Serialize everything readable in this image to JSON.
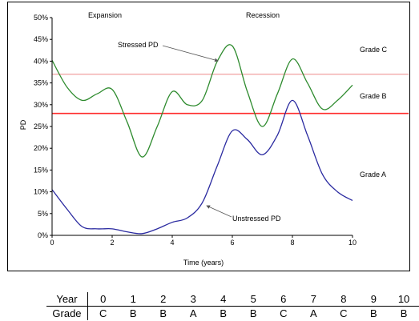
{
  "chart_data": {
    "type": "line",
    "title": "",
    "xlabel": "Time (years)",
    "ylabel": "PD",
    "xlim": [
      0,
      10
    ],
    "ylim": [
      0,
      50
    ],
    "xticks": [
      0,
      2,
      4,
      6,
      8,
      10
    ],
    "yticks": [
      0,
      5,
      10,
      15,
      20,
      25,
      30,
      35,
      40,
      45,
      50
    ],
    "ytick_labels": [
      "0%",
      "5%",
      "10%",
      "15%",
      "20%",
      "25%",
      "30%",
      "35%",
      "40%",
      "45%",
      "50%"
    ],
    "grid": false,
    "series": [
      {
        "color": "#2e8b2e",
        "x": [
          0,
          0.5,
          1,
          1.5,
          2,
          2.5,
          3,
          3.5,
          4,
          4.5,
          5,
          5.5,
          6,
          6.5,
          7,
          7.5,
          8,
          8.5,
          9,
          9.5,
          10
        ],
        "y": [
          40.2,
          34,
          31,
          32.5,
          33.5,
          26,
          18,
          25,
          33,
          30,
          31,
          40,
          43.5,
          33,
          25,
          32.5,
          40.5,
          35,
          29,
          31,
          34.5
        ]
      },
      {
        "color": "#2a2aa0",
        "x": [
          0,
          0.5,
          1,
          1.5,
          2,
          2.5,
          3,
          3.5,
          4,
          4.5,
          5,
          5.5,
          6,
          6.5,
          7,
          7.5,
          8,
          8.5,
          9,
          9.5,
          10
        ],
        "y": [
          10.5,
          6,
          2,
          1.5,
          1.5,
          0.8,
          0.4,
          1.5,
          3,
          4,
          7.5,
          16,
          24,
          22,
          18.5,
          23,
          31,
          23,
          14,
          10,
          8
        ]
      }
    ],
    "thresholds": [
      {
        "y": 37,
        "color": "#f0a0a0"
      },
      {
        "y": 28,
        "color": "#ff2a2a"
      }
    ],
    "annotations": {
      "expansion": "Expansion",
      "recession": "Recession",
      "stressed": "Stressed PD",
      "unstressed": "Unstressed PD",
      "grade_c": "Grade C",
      "grade_b": "Grade B",
      "grade_a": "Grade A"
    }
  },
  "grade_table": {
    "year_header": "Year",
    "grade_header": "Grade",
    "years": [
      "0",
      "1",
      "2",
      "3",
      "4",
      "5",
      "6",
      "7",
      "8",
      "9",
      "10"
    ],
    "grades": [
      "C",
      "B",
      "B",
      "A",
      "B",
      "B",
      "C",
      "A",
      "C",
      "B",
      "B"
    ]
  }
}
